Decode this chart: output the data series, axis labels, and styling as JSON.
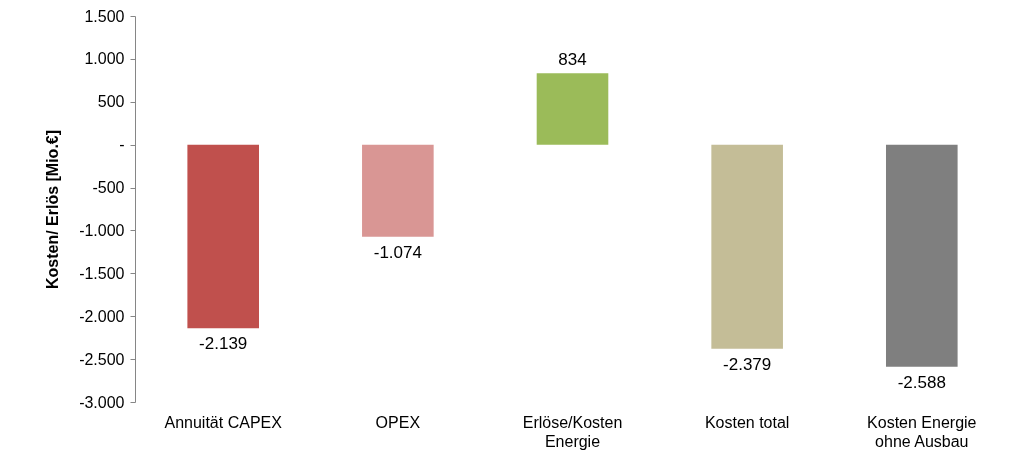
{
  "chart_data": {
    "type": "bar",
    "ylabel": "Kosten/ Erlös [Mio.€]",
    "categories": [
      "Annuität CAPEX",
      "OPEX",
      "Erlöse/Kosten Energie",
      "Kosten total",
      "Kosten Energie ohne Ausbau"
    ],
    "values": [
      -2139,
      -1074,
      834,
      -2379,
      -2588
    ],
    "colors": [
      "#c0504d",
      "#d99694",
      "#9bbb59",
      "#c4bd97",
      "#7f7f7f"
    ],
    "value_labels": [
      "-2.139",
      "-1.074",
      "834",
      "-2.379",
      "-2.588"
    ],
    "ylim": [
      -3000,
      1500
    ],
    "yticks": [
      {
        "value": -3000,
        "label": "-3.000"
      },
      {
        "value": -2500,
        "label": "-2.500"
      },
      {
        "value": -2000,
        "label": "-2.000"
      },
      {
        "value": -1500,
        "label": "-1.500"
      },
      {
        "value": -1000,
        "label": "-1.000"
      },
      {
        "value": -500,
        "label": "-500"
      },
      {
        "value": 0,
        "label": "-"
      },
      {
        "value": 500,
        "label": "500"
      },
      {
        "value": 1000,
        "label": "1.000"
      },
      {
        "value": 1500,
        "label": "1.500"
      }
    ],
    "grid": false
  }
}
